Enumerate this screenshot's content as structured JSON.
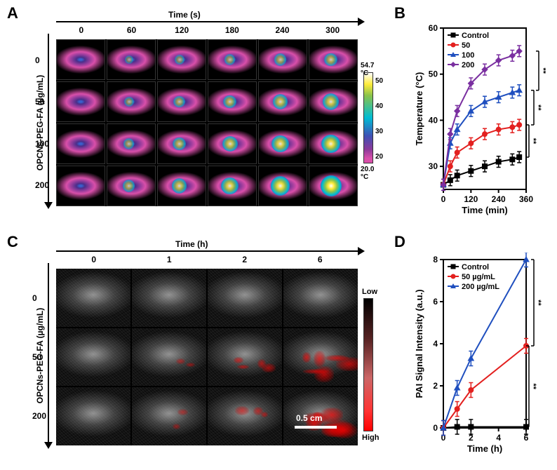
{
  "labels": {
    "A": "A",
    "B": "B",
    "C": "C",
    "D": "D"
  },
  "panelA": {
    "time_header": "Time (s)",
    "time_values": [
      "0",
      "60",
      "120",
      "180",
      "240",
      "300"
    ],
    "y_label": "OPCNs-PEG-FA (µg/mL)",
    "conc_values": [
      "0",
      "50",
      "100",
      "200"
    ],
    "colorbar_top": "54.7 °C",
    "colorbar_bottom": "20.0 °C",
    "colorbar_ticks": [
      "50",
      "40",
      "30",
      "20"
    ],
    "hotspot": [
      [
        0,
        0.05,
        0.1,
        0.14,
        0.18,
        0.22
      ],
      [
        0,
        0.1,
        0.16,
        0.22,
        0.28,
        0.33
      ],
      [
        0,
        0.14,
        0.22,
        0.3,
        0.36,
        0.42
      ],
      [
        0,
        0.18,
        0.28,
        0.36,
        0.44,
        0.5
      ]
    ]
  },
  "panelB": {
    "xlabel": "Time (min)",
    "ylabel": "Temperature (°C)",
    "legend": [
      "Control",
      "50",
      "100",
      "200"
    ],
    "colors": [
      "#000000",
      "#e3201f",
      "#1f4fbf",
      "#7a2fa0"
    ],
    "markers": [
      "square",
      "circle",
      "triangle",
      "diamond"
    ],
    "xlim": [
      0,
      360
    ],
    "xtick": [
      0,
      120,
      240,
      360
    ],
    "ylim": [
      25,
      60
    ],
    "ytick": [
      30,
      40,
      50,
      60
    ],
    "x": [
      0,
      30,
      60,
      120,
      180,
      240,
      300,
      330
    ],
    "series": {
      "Control": [
        26,
        27,
        28,
        29,
        30,
        31,
        31.5,
        32
      ],
      "50": [
        26,
        30,
        33,
        35,
        37,
        38,
        38.5,
        39
      ],
      "100": [
        26,
        35,
        38,
        42,
        44,
        45,
        46,
        46.5
      ],
      "200": [
        26,
        37,
        42,
        48,
        51,
        53,
        54,
        55
      ]
    },
    "err": 1.2,
    "sig": "**"
  },
  "panelC": {
    "time_header": "Time (h)",
    "time_values": [
      "0",
      "1",
      "2",
      "6"
    ],
    "y_label": "OPCNs-PEG-FA (µg/mL)",
    "conc_values": [
      "0",
      "50",
      "200"
    ],
    "colorbar_top": "Low",
    "colorbar_bottom": "High",
    "scalebar": "0.5 cm",
    "pai_intensity": [
      [
        0,
        0,
        0,
        0
      ],
      [
        0,
        0.15,
        0.4,
        0.6
      ],
      [
        0,
        0.1,
        0.3,
        0.7
      ]
    ]
  },
  "panelD": {
    "xlabel": "Time (h)",
    "ylabel": "PAI Signal Intensity (a.u.)",
    "legend": [
      "Control",
      "50 µg/mL",
      "200 µg/mL"
    ],
    "colors": [
      "#000000",
      "#e3201f",
      "#1f4fbf"
    ],
    "markers": [
      "square",
      "circle",
      "triangle"
    ],
    "xlim": [
      0,
      6
    ],
    "xtick": [
      0,
      2,
      4,
      6
    ],
    "ylim": [
      0,
      8
    ],
    "ytick": [
      0,
      2,
      4,
      6,
      8
    ],
    "x": [
      0,
      1,
      2,
      6
    ],
    "series": {
      "Control": [
        0,
        0.05,
        0.05,
        0.05
      ],
      "50 µg/mL": [
        0,
        0.9,
        1.8,
        3.9
      ],
      "200 µg/mL": [
        0,
        1.9,
        3.3,
        8.0
      ]
    },
    "err": 0.35,
    "sig": "**"
  }
}
